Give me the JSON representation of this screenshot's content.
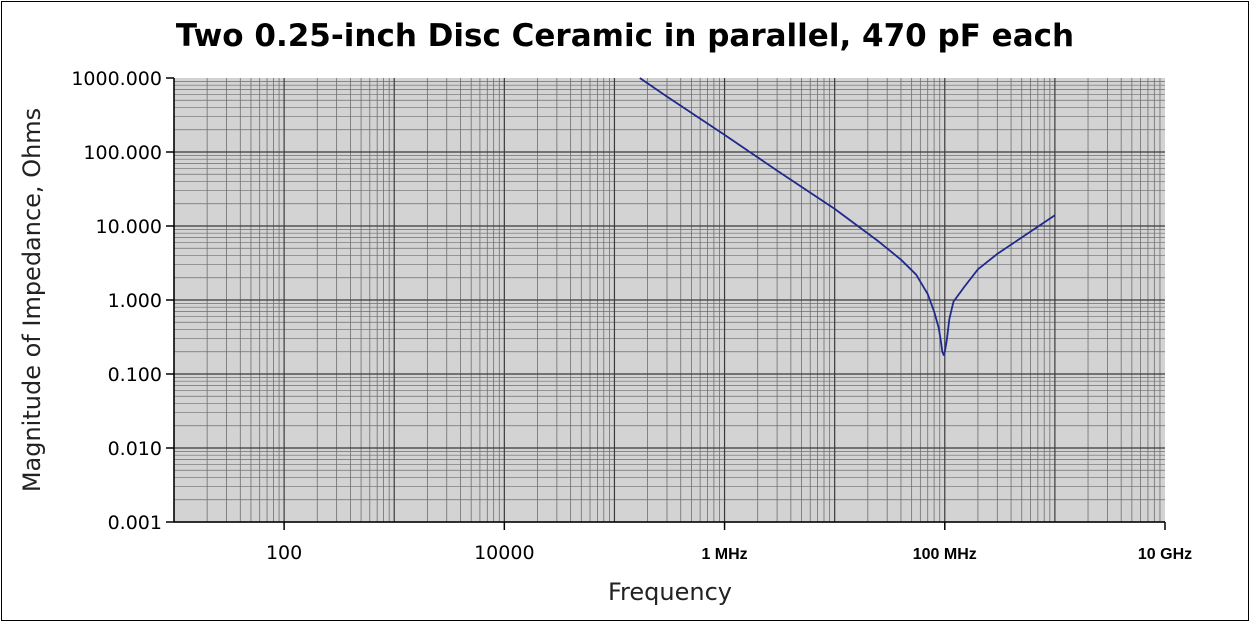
{
  "chart_data": {
    "type": "line",
    "title": "Two 0.25-inch Disc Ceramic in parallel, 470 pF each",
    "xlabel": "Frequency",
    "ylabel": "Magnitude of Impedance, Ohms",
    "x_scale": "log",
    "y_scale": "log",
    "xlim": [
      10,
      10000000000
    ],
    "ylim": [
      0.001,
      1000
    ],
    "grid": true,
    "y_ticks": [
      {
        "value": 0.001,
        "label": "0.001"
      },
      {
        "value": 0.01,
        "label": "0.010"
      },
      {
        "value": 0.1,
        "label": "0.100"
      },
      {
        "value": 1,
        "label": "1.000"
      },
      {
        "value": 10,
        "label": "10.000"
      },
      {
        "value": 100,
        "label": "100.000"
      },
      {
        "value": 1000,
        "label": "1000.000"
      }
    ],
    "x_ticks": [
      {
        "value": 100,
        "label": "100",
        "bold": false
      },
      {
        "value": 10000,
        "label": "10000",
        "bold": false
      },
      {
        "value": 1000000,
        "label": "1 MHz",
        "bold": true
      },
      {
        "value": 100000000,
        "label": "100 MHz",
        "bold": true
      },
      {
        "value": 10000000000,
        "label": "10 GHz",
        "bold": true
      }
    ],
    "colors": {
      "plot_background": "#d3d3d3",
      "line": "#1f2a8c",
      "grid_major": "#3a3a3a",
      "grid_minor": "#6e6e6e"
    },
    "series": [
      {
        "x": [
          170000,
          300000,
          1000000,
          3000000,
          10000000,
          25000000,
          40000000,
          55000000,
          70000000,
          80000000,
          88000000,
          92000000,
          95000000,
          98000000,
          100000000,
          104000000,
          110000000,
          120000000,
          150000000,
          200000000,
          300000000,
          500000000,
          1000000000
        ],
        "y": [
          1000,
          560,
          170,
          56,
          17,
          6.2,
          3.5,
          2.2,
          1.2,
          0.7,
          0.42,
          0.28,
          0.2,
          0.18,
          0.2,
          0.28,
          0.55,
          0.95,
          1.5,
          2.6,
          4.2,
          7,
          14
        ]
      }
    ]
  }
}
